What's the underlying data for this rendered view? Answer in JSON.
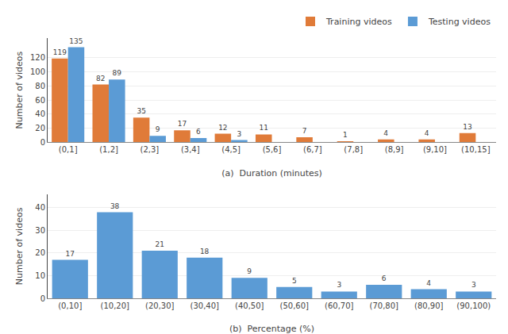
{
  "chart_data": [
    {
      "type": "bar",
      "categories": [
        "(0,1]",
        "(1,2]",
        "(2,3]",
        "(3,4]",
        "(4,5]",
        "(5,6]",
        "(6,7]",
        "(7,8]",
        "(8,9]",
        "(9,10]",
        "(10,15]"
      ],
      "series": [
        {
          "name": "Training videos",
          "color": "#E07B39",
          "values": [
            119,
            82,
            35,
            17,
            12,
            11,
            7,
            1,
            4,
            4,
            13
          ]
        },
        {
          "name": "Testing videos",
          "color": "#5B9BD5",
          "values": [
            135,
            89,
            9,
            6,
            3,
            0,
            0,
            0,
            0,
            0,
            0
          ]
        }
      ],
      "x_label": "(a)  Duration (minutes)",
      "y_label": "Number of videos",
      "ylim": [
        0,
        148
      ],
      "yticks": [
        0,
        20,
        40,
        60,
        80,
        100,
        120
      ],
      "grid": true,
      "legend": "upper right",
      "data_labels": true
    },
    {
      "type": "bar",
      "categories": [
        "(0,10]",
        "(10,20]",
        "(20,30]",
        "(30,40]",
        "(40,50]",
        "(50,60]",
        "(60,70]",
        "(70,80]",
        "(80,90]",
        "(90,100)"
      ],
      "values": [
        17,
        38,
        21,
        18,
        9,
        5,
        3,
        6,
        4,
        3
      ],
      "color": "#5B9BD5",
      "x_label": "(b)  Percentage (%)",
      "y_label": "Number of videos",
      "ylim": [
        0,
        46
      ],
      "yticks": [
        0,
        10,
        20,
        30,
        40
      ],
      "grid": true,
      "data_labels": true
    }
  ]
}
